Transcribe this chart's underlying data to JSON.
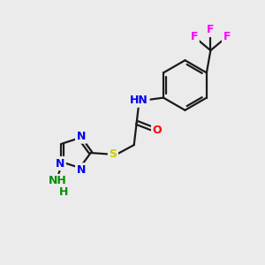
{
  "bg_color": "#ebebeb",
  "bond_color": "#1a1a1a",
  "bond_width": 1.6,
  "atom_colors": {
    "N": "#0000ee",
    "O": "#ff0000",
    "S": "#cccc00",
    "F": "#ff00ff",
    "H_green": "#009000",
    "C": "#1a1a1a"
  },
  "font_size": 9,
  "figsize": [
    3.0,
    3.0
  ],
  "dpi": 100,
  "xlim": [
    0,
    10
  ],
  "ylim": [
    0,
    10
  ]
}
